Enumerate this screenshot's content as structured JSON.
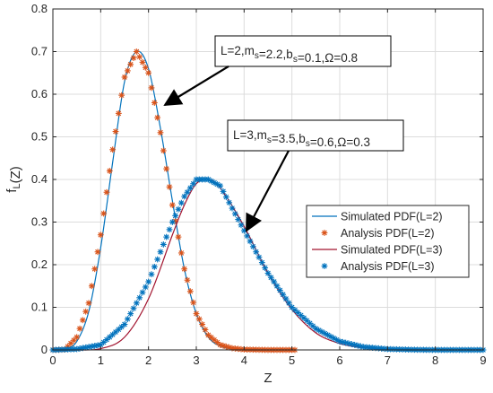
{
  "chart_data": {
    "type": "line",
    "xlabel": "Z",
    "ylabel": "f_L(Z)",
    "xlim": [
      0,
      9
    ],
    "ylim": [
      0,
      0.8
    ],
    "xticks": [
      0,
      1,
      2,
      3,
      4,
      5,
      6,
      7,
      8,
      9
    ],
    "yticks": [
      0,
      0.1,
      0.2,
      0.3,
      0.4,
      0.5,
      0.6,
      0.7,
      0.8
    ],
    "grid": true,
    "legend_position": "right",
    "annotations": [
      {
        "id": "a1",
        "text": "L=2,m_s=2.2,b_s=0.1,Ω=0.8",
        "points_to": [
          2.3,
          0.57
        ]
      },
      {
        "id": "a2",
        "text": "L=3,m_s=3.5,b_s=0.6,Ω=0.3",
        "points_to": [
          3.95,
          0.275
        ]
      }
    ],
    "series": [
      {
        "name": "Simulated PDF(L=2)",
        "style": "line",
        "color": "#0072BD",
        "x": [
          0,
          0.25,
          0.5,
          0.75,
          1.0,
          1.25,
          1.5,
          1.75,
          2.0,
          2.25,
          2.5,
          2.75,
          3.0,
          3.25,
          3.5,
          3.75,
          4.0,
          4.5
        ],
        "y": [
          0,
          0.001,
          0.02,
          0.09,
          0.24,
          0.44,
          0.63,
          0.7,
          0.66,
          0.52,
          0.35,
          0.19,
          0.085,
          0.03,
          0.009,
          0.002,
          0.0005,
          0
        ]
      },
      {
        "name": "Analysis PDF(L=2)",
        "style": "markers",
        "marker": "*",
        "color": "#D95319",
        "x": [
          0,
          0.25,
          0.5,
          0.75,
          1.0,
          1.25,
          1.5,
          1.75,
          2.0,
          2.25,
          2.5,
          2.75,
          3.0,
          3.25,
          3.5,
          3.75,
          4.0,
          4.5,
          5.1
        ],
        "y": [
          0,
          0.001,
          0.03,
          0.11,
          0.27,
          0.47,
          0.64,
          0.7,
          0.65,
          0.51,
          0.34,
          0.19,
          0.085,
          0.035,
          0.012,
          0.004,
          0.001,
          0,
          0
        ]
      },
      {
        "name": "Simulated PDF(L=3)",
        "style": "line",
        "color": "#A2142F",
        "x": [
          0,
          0.5,
          1.0,
          1.5,
          2.0,
          2.5,
          2.75,
          3.0,
          3.25,
          3.5,
          4.0,
          4.5,
          5.0,
          5.5,
          6.0,
          6.5,
          7.0,
          7.5,
          8.0
        ],
        "y": [
          0,
          0,
          0.003,
          0.03,
          0.12,
          0.27,
          0.34,
          0.39,
          0.4,
          0.38,
          0.29,
          0.18,
          0.095,
          0.04,
          0.015,
          0.005,
          0.0015,
          0.0004,
          0
        ]
      },
      {
        "name": "Analysis PDF(L=3)",
        "style": "markers",
        "marker": "*",
        "color": "#0072BD",
        "x": [
          0,
          0.5,
          1.0,
          1.5,
          2.0,
          2.5,
          2.75,
          3.0,
          3.25,
          3.5,
          4.0,
          4.5,
          5.0,
          5.5,
          6.0,
          6.5,
          7.0,
          7.5,
          8.0,
          9.0
        ],
        "y": [
          0,
          0.002,
          0.012,
          0.06,
          0.16,
          0.3,
          0.36,
          0.4,
          0.4,
          0.385,
          0.28,
          0.18,
          0.1,
          0.05,
          0.02,
          0.007,
          0.002,
          0.0006,
          0,
          0
        ]
      }
    ]
  }
}
